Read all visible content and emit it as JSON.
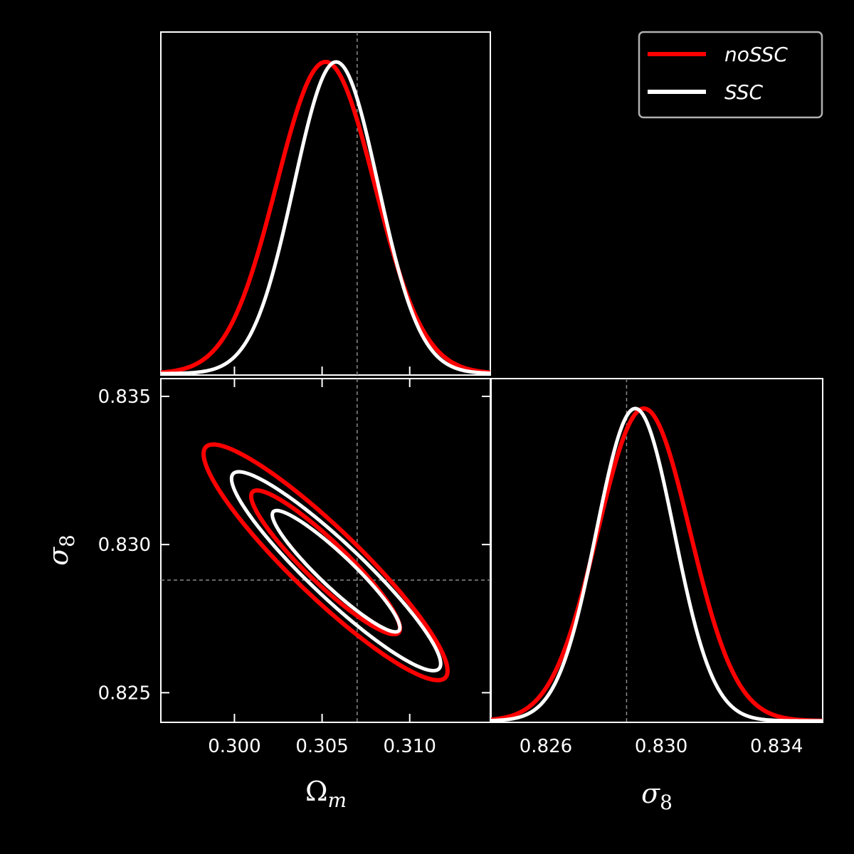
{
  "chart_data": {
    "type": "triangle-corner-plot",
    "parameters": [
      "Omega_m",
      "sigma_8"
    ],
    "truth": {
      "Omega_m": 0.307,
      "sigma_8": 0.8288
    },
    "legend": {
      "placement": "top-right",
      "entries": [
        {
          "name": "noSSC",
          "color": "#ff0000"
        },
        {
          "name": "SSC",
          "color": "#ffffff"
        }
      ]
    },
    "series": [
      {
        "name": "noSSC",
        "color": "#ff0000",
        "Omega_m": {
          "mean": 0.3052,
          "sigma": 0.0028
        },
        "sigma_8": {
          "mean": 0.8294,
          "sigma": 0.0016
        },
        "correlation": -0.92
      },
      {
        "name": "SSC",
        "color": "#ffffff",
        "Omega_m": {
          "mean": 0.3058,
          "sigma": 0.0024
        },
        "sigma_8": {
          "mean": 0.8291,
          "sigma": 0.00135
        },
        "correlation": -0.93
      }
    ],
    "contour_levels_delta_chi2": [
      2.3,
      6.18
    ],
    "panels": {
      "omega_1d": {
        "xlim": [
          0.2958,
          0.3146
        ]
      },
      "joint_2d": {
        "xlim": [
          0.2958,
          0.3146
        ],
        "ylim": [
          0.824,
          0.8356
        ],
        "xticks": [
          0.3,
          0.305,
          0.31
        ],
        "xtick_labels": [
          "0.300",
          "0.305",
          "0.310"
        ],
        "yticks": [
          0.825,
          0.83,
          0.835
        ],
        "ytick_labels": [
          "0.825",
          "0.830",
          "0.835"
        ],
        "xlabel": "Ωm",
        "ylabel": "σ8"
      },
      "sigma8_1d": {
        "xlim": [
          0.8241,
          0.8356
        ],
        "xticks": [
          0.826,
          0.83,
          0.834
        ],
        "xtick_labels": [
          "0.826",
          "0.830",
          "0.834"
        ],
        "xlabel": "σ8"
      }
    }
  }
}
